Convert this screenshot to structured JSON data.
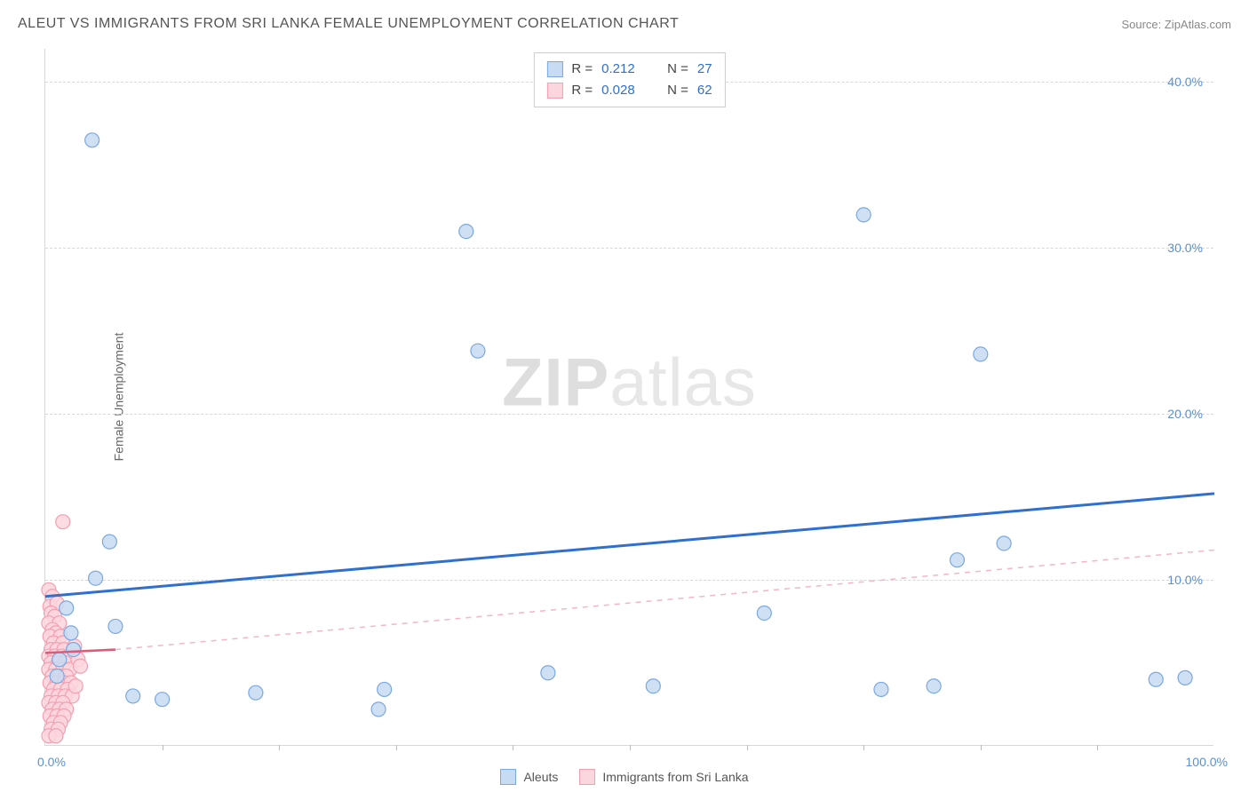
{
  "title": "ALEUT VS IMMIGRANTS FROM SRI LANKA FEMALE UNEMPLOYMENT CORRELATION CHART",
  "source": "Source: ZipAtlas.com",
  "ylabel": "Female Unemployment",
  "watermark_bold": "ZIP",
  "watermark_rest": "atlas",
  "chart": {
    "type": "scatter",
    "background_color": "#ffffff",
    "grid_color": "#d8d8d8",
    "grid_dash": "4,4",
    "axis_color": "#d8d8d8",
    "tick_label_color": "#5b8fd6",
    "tick_fontsize": 14,
    "xlim": [
      0,
      100
    ],
    "ylim": [
      0,
      42
    ],
    "yticks": [
      10,
      20,
      30,
      40
    ],
    "ytick_labels": [
      "10.0%",
      "20.0%",
      "30.0%",
      "40.0%"
    ],
    "xtick_positions": [
      10,
      20,
      30,
      40,
      50,
      60,
      70,
      80,
      90
    ],
    "xtick_labels_left": "0.0%",
    "xtick_labels_right": "100.0%",
    "marker_radius": 8,
    "marker_stroke_width": 1.2,
    "series": [
      {
        "name": "Aleuts",
        "label": "Aleuts",
        "fill_color": "#c7dbf3",
        "stroke_color": "#7aa8e0",
        "trend_color": "#2f6fd0",
        "trend_width": 3,
        "trend_dash": "none",
        "r": "0.212",
        "n": "27",
        "trend_line": {
          "x1": 0,
          "y1": 9.0,
          "x2": 100,
          "y2": 15.2
        },
        "points": [
          {
            "x": 4.0,
            "y": 36.5
          },
          {
            "x": 36.0,
            "y": 31.0
          },
          {
            "x": 70.0,
            "y": 32.0
          },
          {
            "x": 37.0,
            "y": 23.8
          },
          {
            "x": 80.0,
            "y": 23.6
          },
          {
            "x": 82.0,
            "y": 12.2
          },
          {
            "x": 78.0,
            "y": 11.2
          },
          {
            "x": 5.5,
            "y": 12.3
          },
          {
            "x": 4.3,
            "y": 10.1
          },
          {
            "x": 1.8,
            "y": 8.3
          },
          {
            "x": 2.2,
            "y": 6.8
          },
          {
            "x": 2.4,
            "y": 5.8
          },
          {
            "x": 6.0,
            "y": 7.2
          },
          {
            "x": 1.2,
            "y": 5.2
          },
          {
            "x": 1.0,
            "y": 4.2
          },
          {
            "x": 7.5,
            "y": 3.0
          },
          {
            "x": 10.0,
            "y": 2.8
          },
          {
            "x": 18.0,
            "y": 3.2
          },
          {
            "x": 28.5,
            "y": 2.2
          },
          {
            "x": 29.0,
            "y": 3.4
          },
          {
            "x": 43.0,
            "y": 4.4
          },
          {
            "x": 52.0,
            "y": 3.6
          },
          {
            "x": 61.5,
            "y": 8.0
          },
          {
            "x": 71.5,
            "y": 3.4
          },
          {
            "x": 76.0,
            "y": 3.6
          },
          {
            "x": 95.0,
            "y": 4.0
          },
          {
            "x": 97.5,
            "y": 4.1
          }
        ]
      },
      {
        "name": "Immigrants from Sri Lanka",
        "label": "Immigrants from Sri Lanka",
        "fill_color": "#fcd6de",
        "stroke_color": "#f39fb0",
        "trend_color": "#de5a78",
        "trend_dash_color": "#f5b6c4",
        "trend_width": 2.5,
        "trend_dash": "6,6",
        "r": "0.028",
        "n": "62",
        "trend_line_solid": {
          "x1": 0,
          "y1": 5.6,
          "x2": 6,
          "y2": 5.8
        },
        "trend_line_dashed": {
          "x1": 6,
          "y1": 5.8,
          "x2": 100,
          "y2": 11.8
        },
        "points": [
          {
            "x": 1.5,
            "y": 13.5
          },
          {
            "x": 0.3,
            "y": 9.4
          },
          {
            "x": 0.6,
            "y": 9.0
          },
          {
            "x": 0.4,
            "y": 8.4
          },
          {
            "x": 1.0,
            "y": 8.6
          },
          {
            "x": 0.5,
            "y": 8.0
          },
          {
            "x": 0.8,
            "y": 7.8
          },
          {
            "x": 0.3,
            "y": 7.4
          },
          {
            "x": 1.2,
            "y": 7.4
          },
          {
            "x": 0.6,
            "y": 7.0
          },
          {
            "x": 0.9,
            "y": 6.8
          },
          {
            "x": 0.4,
            "y": 6.6
          },
          {
            "x": 1.3,
            "y": 6.6
          },
          {
            "x": 0.7,
            "y": 6.2
          },
          {
            "x": 1.5,
            "y": 6.2
          },
          {
            "x": 0.5,
            "y": 5.8
          },
          {
            "x": 1.0,
            "y": 5.8
          },
          {
            "x": 1.6,
            "y": 5.8
          },
          {
            "x": 0.3,
            "y": 5.4
          },
          {
            "x": 0.8,
            "y": 5.4
          },
          {
            "x": 1.4,
            "y": 5.4
          },
          {
            "x": 2.0,
            "y": 5.4
          },
          {
            "x": 0.5,
            "y": 5.0
          },
          {
            "x": 1.1,
            "y": 5.0
          },
          {
            "x": 1.7,
            "y": 5.0
          },
          {
            "x": 0.3,
            "y": 4.6
          },
          {
            "x": 0.9,
            "y": 4.6
          },
          {
            "x": 1.5,
            "y": 4.6
          },
          {
            "x": 2.1,
            "y": 4.6
          },
          {
            "x": 0.6,
            "y": 4.2
          },
          {
            "x": 1.2,
            "y": 4.2
          },
          {
            "x": 1.8,
            "y": 4.2
          },
          {
            "x": 0.4,
            "y": 3.8
          },
          {
            "x": 1.0,
            "y": 3.8
          },
          {
            "x": 1.6,
            "y": 3.8
          },
          {
            "x": 2.2,
            "y": 3.8
          },
          {
            "x": 0.7,
            "y": 3.4
          },
          {
            "x": 1.3,
            "y": 3.4
          },
          {
            "x": 1.9,
            "y": 3.4
          },
          {
            "x": 0.5,
            "y": 3.0
          },
          {
            "x": 1.1,
            "y": 3.0
          },
          {
            "x": 1.7,
            "y": 3.0
          },
          {
            "x": 2.3,
            "y": 3.0
          },
          {
            "x": 0.3,
            "y": 2.6
          },
          {
            "x": 0.9,
            "y": 2.6
          },
          {
            "x": 1.5,
            "y": 2.6
          },
          {
            "x": 0.6,
            "y": 2.2
          },
          {
            "x": 1.2,
            "y": 2.2
          },
          {
            "x": 1.8,
            "y": 2.2
          },
          {
            "x": 0.4,
            "y": 1.8
          },
          {
            "x": 1.0,
            "y": 1.8
          },
          {
            "x": 1.6,
            "y": 1.8
          },
          {
            "x": 0.7,
            "y": 1.4
          },
          {
            "x": 1.3,
            "y": 1.4
          },
          {
            "x": 0.5,
            "y": 1.0
          },
          {
            "x": 1.1,
            "y": 1.0
          },
          {
            "x": 0.3,
            "y": 0.6
          },
          {
            "x": 0.9,
            "y": 0.6
          },
          {
            "x": 2.5,
            "y": 6.0
          },
          {
            "x": 2.8,
            "y": 5.2
          },
          {
            "x": 3.0,
            "y": 4.8
          },
          {
            "x": 2.6,
            "y": 3.6
          }
        ]
      }
    ],
    "legend_position": "top-center",
    "bottom_legend_labels": [
      "Aleuts",
      "Immigrants from Sri Lanka"
    ]
  }
}
